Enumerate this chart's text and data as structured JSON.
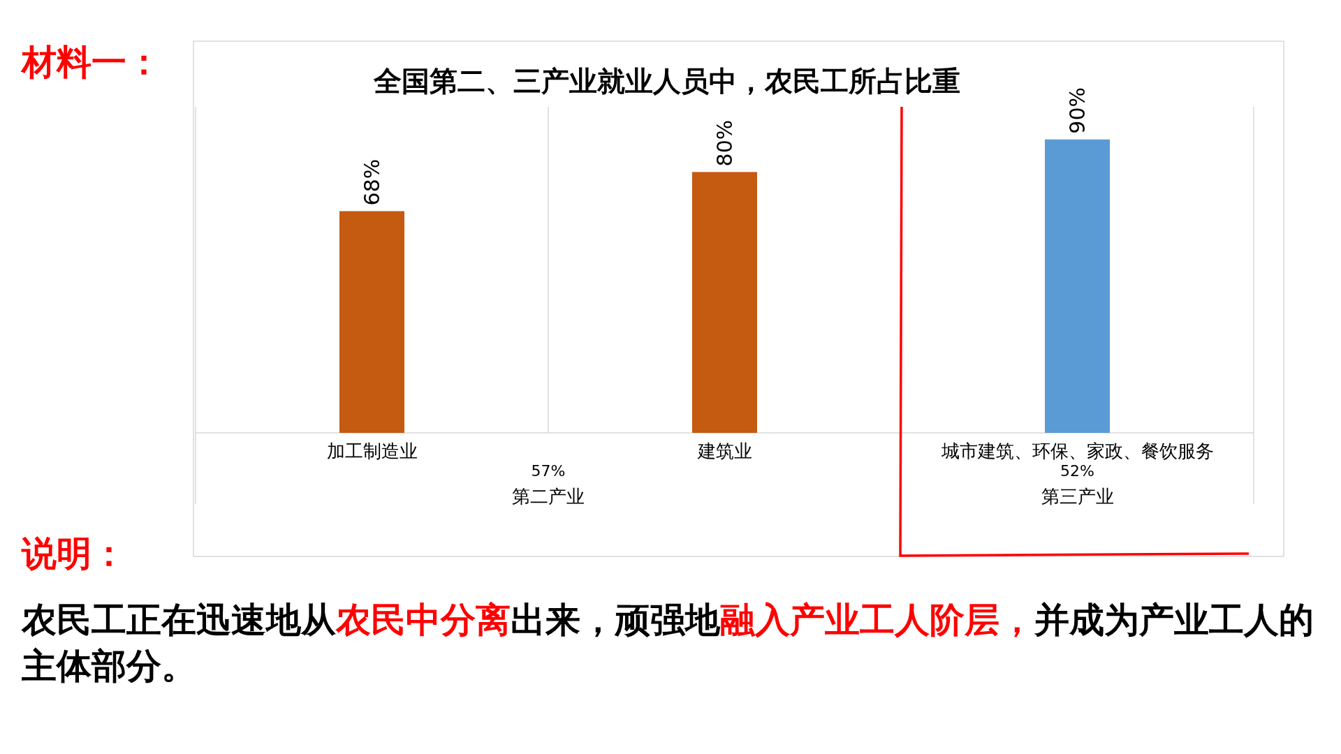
{
  "chart_data": {
    "type": "bar",
    "title": "全国第二、三产业就业人员中，农民工所占比重",
    "categories": [
      "加工制造业",
      "建筑业",
      "城市建筑、环保、家政、餐饮服务"
    ],
    "values": [
      68,
      80,
      90
    ],
    "colors": [
      "#c55a11",
      "#c55a11",
      "#5b9bd5"
    ],
    "value_labels": [
      "68%",
      "80%",
      "90%"
    ],
    "ylim": [
      0,
      100
    ],
    "grid": "x",
    "annotations": [
      "材料一：",
      "57%",
      "第二产业",
      "52%",
      "第三产业",
      "说明：",
      "农民工正在迅速地从",
      "农民中分离",
      "出来，顽强地",
      "融入产业工人阶层，",
      "并成为产业工人的主体部分。"
    ]
  }
}
